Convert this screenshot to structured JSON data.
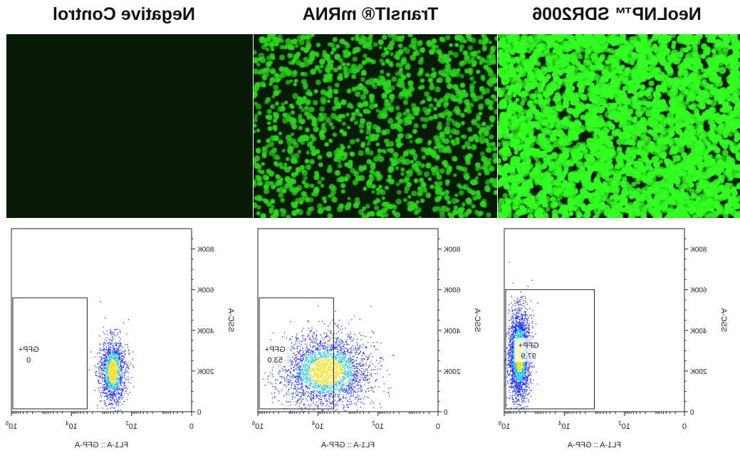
{
  "panels": [
    {
      "title": "NeoLNP™ SDR2006",
      "micro": {
        "intensity": "high",
        "density": 3200
      },
      "flow": {
        "gate_label": "GFP+",
        "gate_value": "97.9",
        "y_axis_label": "SSC-A",
        "x_axis_label": "FL1-A :: GFP-A",
        "y_ticks": [
          "0",
          "200K",
          "400K",
          "600K",
          "800K"
        ],
        "x_ticks": [
          "0",
          "10^2",
          "10^4",
          "10^6"
        ],
        "chart_data": {
          "type": "scatter",
          "x_scale": "log",
          "xlim": [
            0,
            1000000
          ],
          "ylim": [
            0,
            900000
          ],
          "gate": {
            "x_range": [
              1000,
              1000000
            ],
            "y_range": [
              0,
              600000
            ]
          },
          "density_center": {
            "x": 300000,
            "y": 280000
          }
        }
      }
    },
    {
      "title": "TransIT® mRNA",
      "micro": {
        "intensity": "medium",
        "density": 1400
      },
      "flow": {
        "gate_label": "GFP+",
        "gate_value": "53.0",
        "y_axis_label": "SSC-A",
        "x_axis_label": "FL1-A :: GFP-A",
        "y_ticks": [
          "0",
          "200K",
          "400K",
          "600K",
          "800K"
        ],
        "x_ticks": [
          "0",
          "10^2",
          "10^4",
          "10^6"
        ],
        "chart_data": {
          "type": "scatter",
          "x_scale": "log",
          "xlim": [
            0,
            1000000
          ],
          "ylim": [
            0,
            900000
          ],
          "gate": {
            "x_range": [
              3000,
              1000000
            ],
            "y_range": [
              0,
              560000
            ]
          },
          "density_center": {
            "x": 5000,
            "y": 200000
          }
        }
      }
    },
    {
      "title": "Negative Control",
      "micro": {
        "intensity": "none",
        "density": 0
      },
      "flow": {
        "gate_label": "GFP+",
        "gate_value": "0",
        "y_axis_label": "SSC-A",
        "x_axis_label": "FL1-A :: GFP-A",
        "y_ticks": [
          "0",
          "200K",
          "400K",
          "600K",
          "800K"
        ],
        "x_ticks": [
          "0",
          "10^2",
          "10^4",
          "10^6"
        ],
        "chart_data": {
          "type": "scatter",
          "x_scale": "log",
          "xlim": [
            0,
            1000000
          ],
          "ylim": [
            0,
            900000
          ],
          "gate": {
            "x_range": [
              3000,
              1000000
            ],
            "y_range": [
              0,
              560000
            ]
          },
          "density_center": {
            "x": 400,
            "y": 200000
          }
        }
      }
    }
  ],
  "colors": {
    "micro_background": "#071a04",
    "cell_bright": "#33ff22",
    "cell_medium": "#2cd61c",
    "density_low": "#1a2cff",
    "density_mid": "#19c8e6",
    "density_high": "#f0e020"
  }
}
